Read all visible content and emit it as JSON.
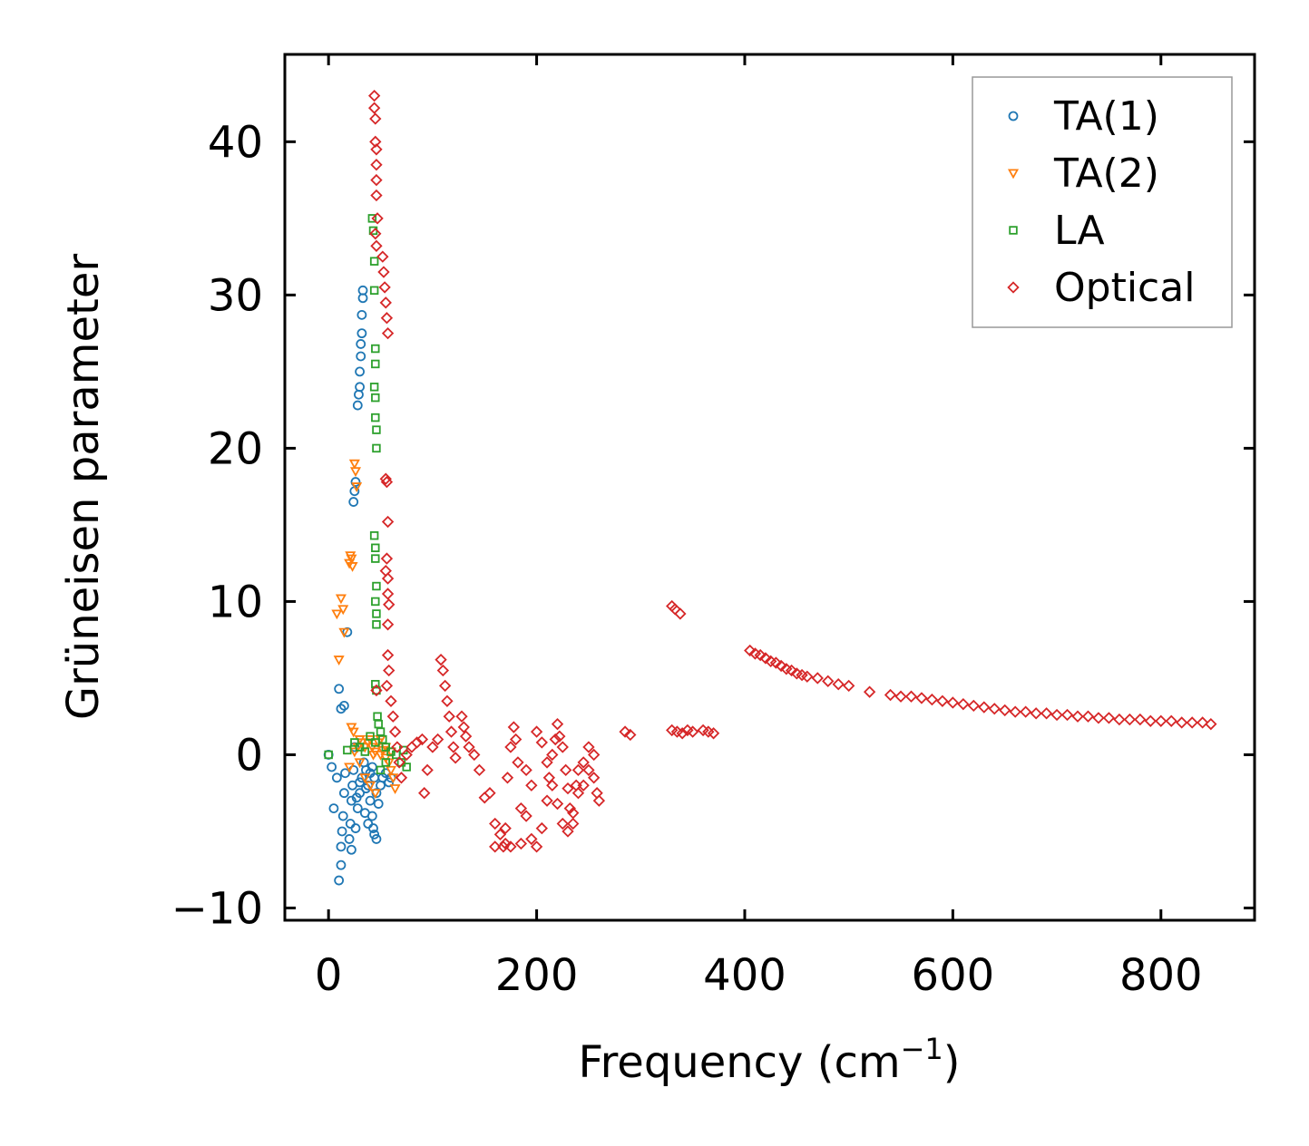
{
  "chart_data": {
    "type": "scatter",
    "title": "",
    "xlabel": "Frequency (cm",
    "xlabel_sup": "−1",
    "xlabel_end": ")",
    "ylabel": "Grüneisen parameter",
    "xlim": [
      -42,
      890
    ],
    "ylim": [
      -10.8,
      45.7
    ],
    "xticks": [
      0,
      200,
      400,
      600,
      800
    ],
    "xtick_labels": [
      "0",
      "200",
      "400",
      "600",
      "800"
    ],
    "yticks": [
      -10,
      0,
      10,
      20,
      30,
      40
    ],
    "ytick_labels": [
      "−10",
      "0",
      "10",
      "20",
      "30",
      "40"
    ],
    "legend_position": "top-right",
    "series": [
      {
        "name": "TA(1)",
        "marker": "circle",
        "color": "#1f77b4",
        "points": [
          [
            0,
            0
          ],
          [
            3,
            -0.8
          ],
          [
            5,
            -3.5
          ],
          [
            8,
            -1.5
          ],
          [
            10,
            -8.2
          ],
          [
            12,
            -7.2
          ],
          [
            12,
            -6.0
          ],
          [
            13,
            -5.0
          ],
          [
            14,
            -4.0
          ],
          [
            15,
            -2.5
          ],
          [
            16,
            -1.2
          ],
          [
            10,
            4.3
          ],
          [
            12,
            3.0
          ],
          [
            15,
            3.2
          ],
          [
            18,
            8.0
          ],
          [
            20,
            -5.5
          ],
          [
            21,
            -4.5
          ],
          [
            22,
            -3.0
          ],
          [
            23,
            -2.0
          ],
          [
            24,
            -1.0
          ],
          [
            25,
            0.5
          ],
          [
            22,
            -6.2
          ],
          [
            24,
            16.5
          ],
          [
            25,
            17.2
          ],
          [
            26,
            17.8
          ],
          [
            28,
            22.8
          ],
          [
            29,
            23.5
          ],
          [
            30,
            24.0
          ],
          [
            30,
            25.0
          ],
          [
            31,
            26.0
          ],
          [
            31,
            26.8
          ],
          [
            32,
            27.5
          ],
          [
            32,
            28.7
          ],
          [
            33,
            29.8
          ],
          [
            33,
            30.3
          ],
          [
            26,
            -4.8
          ],
          [
            28,
            -3.5
          ],
          [
            30,
            -2.5
          ],
          [
            32,
            -1.5
          ],
          [
            34,
            -0.5
          ],
          [
            36,
            -1.0
          ],
          [
            38,
            -2.0
          ],
          [
            40,
            -3.0
          ],
          [
            42,
            -4.0
          ],
          [
            44,
            -5.2
          ],
          [
            46,
            -5.5
          ],
          [
            35,
            -3.8
          ],
          [
            38,
            -4.5
          ],
          [
            40,
            -1.2
          ],
          [
            42,
            -0.8
          ],
          [
            44,
            -1.5
          ],
          [
            46,
            -2.5
          ],
          [
            48,
            -3.2
          ],
          [
            50,
            -2.0
          ],
          [
            52,
            -1.5
          ],
          [
            55,
            -1.2
          ],
          [
            58,
            -1.8
          ],
          [
            60,
            -1.5
          ],
          [
            30,
            -1.8
          ],
          [
            27,
            -2.8
          ],
          [
            36,
            -2.2
          ],
          [
            43,
            -4.8
          ]
        ]
      },
      {
        "name": "TA(2)",
        "marker": "triangle",
        "color": "#ff7f0e",
        "points": [
          [
            8,
            9.2
          ],
          [
            10,
            6.2
          ],
          [
            12,
            10.2
          ],
          [
            14,
            9.5
          ],
          [
            15,
            8.0
          ],
          [
            20,
            12.5
          ],
          [
            21,
            13.0
          ],
          [
            22,
            12.8
          ],
          [
            23,
            12.3
          ],
          [
            25,
            19.0
          ],
          [
            26,
            18.5
          ],
          [
            27,
            17.5
          ],
          [
            22,
            1.8
          ],
          [
            24,
            1.5
          ],
          [
            20,
            -0.8
          ],
          [
            25,
            0.2
          ],
          [
            28,
            0.5
          ],
          [
            30,
            1.0
          ],
          [
            32,
            0.8
          ],
          [
            35,
            0.5
          ],
          [
            38,
            0.8
          ],
          [
            40,
            1.0
          ],
          [
            42,
            0.5
          ],
          [
            45,
            0.2
          ],
          [
            48,
            0.8
          ],
          [
            50,
            1.0
          ],
          [
            52,
            0.3
          ],
          [
            55,
            -0.2
          ],
          [
            58,
            -0.5
          ],
          [
            60,
            -1.0
          ],
          [
            62,
            -1.5
          ],
          [
            64,
            -2.2
          ],
          [
            35,
            -1.5
          ],
          [
            40,
            -2.0
          ],
          [
            45,
            -2.5
          ],
          [
            50,
            0.0
          ],
          [
            55,
            0.5
          ],
          [
            60,
            0.2
          ],
          [
            30,
            -0.5
          ],
          [
            43,
            0.0
          ]
        ]
      },
      {
        "name": "LA",
        "marker": "square",
        "color": "#2ca02c",
        "points": [
          [
            0,
            0
          ],
          [
            18,
            0.3
          ],
          [
            25,
            0.8
          ],
          [
            30,
            0.5
          ],
          [
            35,
            0.2
          ],
          [
            42,
            35.0
          ],
          [
            43,
            34.2
          ],
          [
            44,
            32.2
          ],
          [
            44,
            30.3
          ],
          [
            45,
            26.5
          ],
          [
            45,
            25.5
          ],
          [
            44,
            24.0
          ],
          [
            45,
            23.3
          ],
          [
            45,
            22.0
          ],
          [
            46,
            21.2
          ],
          [
            46,
            20.0
          ],
          [
            44,
            14.3
          ],
          [
            45,
            13.5
          ],
          [
            45,
            12.8
          ],
          [
            46,
            11.0
          ],
          [
            45,
            10.0
          ],
          [
            46,
            9.2
          ],
          [
            46,
            8.5
          ],
          [
            45,
            4.6
          ],
          [
            46,
            4.2
          ],
          [
            47,
            2.5
          ],
          [
            48,
            2.0
          ],
          [
            50,
            1.5
          ],
          [
            52,
            1.0
          ],
          [
            55,
            0.5
          ],
          [
            60,
            0.2
          ],
          [
            65,
            0.0
          ],
          [
            70,
            -0.5
          ],
          [
            72,
            0.3
          ],
          [
            75,
            -0.8
          ],
          [
            50,
            -1.0
          ],
          [
            55,
            -0.5
          ],
          [
            45,
            0.8
          ],
          [
            40,
            1.2
          ]
        ]
      },
      {
        "name": "Optical",
        "marker": "diamond",
        "color": "#d62728",
        "points": [
          [
            44,
            43.0
          ],
          [
            44,
            42.2
          ],
          [
            45,
            41.5
          ],
          [
            45,
            40.0
          ],
          [
            46,
            39.5
          ],
          [
            46,
            38.5
          ],
          [
            46,
            37.5
          ],
          [
            46,
            36.5
          ],
          [
            47,
            35.0
          ],
          [
            45,
            34.0
          ],
          [
            46,
            33.2
          ],
          [
            52,
            32.5
          ],
          [
            53,
            31.5
          ],
          [
            54,
            30.5
          ],
          [
            55,
            29.5
          ],
          [
            56,
            28.5
          ],
          [
            57,
            27.5
          ],
          [
            55,
            18.0
          ],
          [
            56,
            17.8
          ],
          [
            57,
            15.2
          ],
          [
            56,
            12.8
          ],
          [
            55,
            12.0
          ],
          [
            57,
            11.5
          ],
          [
            57,
            10.5
          ],
          [
            58,
            9.8
          ],
          [
            57,
            8.5
          ],
          [
            57,
            6.5
          ],
          [
            58,
            5.5
          ],
          [
            56,
            4.5
          ],
          [
            46,
            4.2
          ],
          [
            60,
            3.5
          ],
          [
            62,
            2.5
          ],
          [
            64,
            1.5
          ],
          [
            66,
            0.5
          ],
          [
            68,
            -0.5
          ],
          [
            70,
            -1.5
          ],
          [
            75,
            0.0
          ],
          [
            80,
            0.5
          ],
          [
            85,
            0.8
          ],
          [
            90,
            1.0
          ],
          [
            95,
            -1.0
          ],
          [
            92,
            -2.5
          ],
          [
            100,
            0.5
          ],
          [
            105,
            1.0
          ],
          [
            108,
            6.2
          ],
          [
            110,
            5.5
          ],
          [
            112,
            4.5
          ],
          [
            114,
            3.5
          ],
          [
            116,
            2.5
          ],
          [
            118,
            1.5
          ],
          [
            120,
            0.5
          ],
          [
            122,
            -0.2
          ],
          [
            128,
            2.5
          ],
          [
            130,
            1.8
          ],
          [
            132,
            1.2
          ],
          [
            135,
            0.5
          ],
          [
            140,
            0.0
          ],
          [
            145,
            -1.0
          ],
          [
            150,
            -2.8
          ],
          [
            155,
            -2.5
          ],
          [
            160,
            -4.5
          ],
          [
            160,
            -6.0
          ],
          [
            165,
            -5.2
          ],
          [
            168,
            -6.0
          ],
          [
            170,
            -4.8
          ],
          [
            172,
            -1.5
          ],
          [
            175,
            0.5
          ],
          [
            178,
            1.8
          ],
          [
            180,
            1.0
          ],
          [
            182,
            -0.5
          ],
          [
            185,
            -3.5
          ],
          [
            190,
            -4.0
          ],
          [
            195,
            -5.5
          ],
          [
            200,
            -6.0
          ],
          [
            205,
            -4.8
          ],
          [
            210,
            -3.0
          ],
          [
            212,
            -1.5
          ],
          [
            215,
            0.0
          ],
          [
            218,
            1.0
          ],
          [
            220,
            2.0
          ],
          [
            222,
            1.2
          ],
          [
            225,
            0.5
          ],
          [
            228,
            -1.0
          ],
          [
            230,
            -2.2
          ],
          [
            232,
            -3.5
          ],
          [
            235,
            -4.5
          ],
          [
            238,
            -2.0
          ],
          [
            240,
            -1.0
          ],
          [
            245,
            -0.5
          ],
          [
            250,
            0.5
          ],
          [
            255,
            -1.5
          ],
          [
            258,
            -2.5
          ],
          [
            260,
            -3.0
          ],
          [
            200,
            1.5
          ],
          [
            205,
            0.8
          ],
          [
            210,
            -0.5
          ],
          [
            215,
            -2.0
          ],
          [
            220,
            -3.2
          ],
          [
            225,
            -4.5
          ],
          [
            230,
            -5.0
          ],
          [
            235,
            -3.8
          ],
          [
            240,
            -2.5
          ],
          [
            245,
            -2.0
          ],
          [
            250,
            -1.0
          ],
          [
            255,
            0.0
          ],
          [
            190,
            -1.0
          ],
          [
            195,
            -2.0
          ],
          [
            185,
            -5.8
          ],
          [
            175,
            -6.0
          ],
          [
            170,
            -5.8
          ],
          [
            285,
            1.5
          ],
          [
            290,
            1.3
          ],
          [
            330,
            9.7
          ],
          [
            333,
            9.5
          ],
          [
            338,
            9.2
          ],
          [
            330,
            1.6
          ],
          [
            335,
            1.5
          ],
          [
            340,
            1.4
          ],
          [
            345,
            1.6
          ],
          [
            350,
            1.5
          ],
          [
            360,
            1.6
          ],
          [
            365,
            1.5
          ],
          [
            370,
            1.4
          ],
          [
            405,
            6.8
          ],
          [
            410,
            6.6
          ],
          [
            415,
            6.5
          ],
          [
            420,
            6.3
          ],
          [
            425,
            6.1
          ],
          [
            430,
            6.0
          ],
          [
            435,
            5.8
          ],
          [
            440,
            5.6
          ],
          [
            445,
            5.5
          ],
          [
            450,
            5.3
          ],
          [
            455,
            5.2
          ],
          [
            460,
            5.1
          ],
          [
            470,
            5.0
          ],
          [
            480,
            4.8
          ],
          [
            490,
            4.6
          ],
          [
            500,
            4.5
          ],
          [
            520,
            4.1
          ],
          [
            540,
            3.9
          ],
          [
            550,
            3.8
          ],
          [
            560,
            3.8
          ],
          [
            570,
            3.7
          ],
          [
            580,
            3.6
          ],
          [
            590,
            3.5
          ],
          [
            600,
            3.4
          ],
          [
            610,
            3.3
          ],
          [
            620,
            3.2
          ],
          [
            630,
            3.1
          ],
          [
            640,
            3.0
          ],
          [
            650,
            2.9
          ],
          [
            660,
            2.8
          ],
          [
            670,
            2.8
          ],
          [
            680,
            2.7
          ],
          [
            690,
            2.7
          ],
          [
            700,
            2.6
          ],
          [
            710,
            2.6
          ],
          [
            720,
            2.5
          ],
          [
            730,
            2.5
          ],
          [
            740,
            2.4
          ],
          [
            750,
            2.4
          ],
          [
            760,
            2.3
          ],
          [
            770,
            2.3
          ],
          [
            780,
            2.3
          ],
          [
            790,
            2.2
          ],
          [
            800,
            2.2
          ],
          [
            810,
            2.2
          ],
          [
            820,
            2.1
          ],
          [
            830,
            2.1
          ],
          [
            840,
            2.1
          ],
          [
            848,
            2.0
          ]
        ]
      }
    ]
  }
}
